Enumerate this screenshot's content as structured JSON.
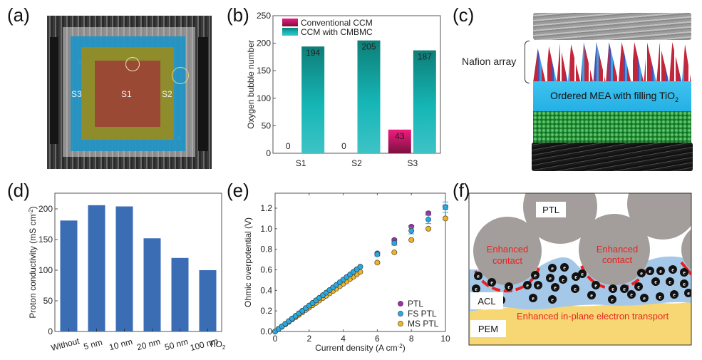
{
  "panels": {
    "a": {
      "label": "(a)",
      "regions": [
        {
          "name": "S1",
          "color": "#b5543a"
        },
        {
          "name": "S2",
          "color": "#a8a03a"
        },
        {
          "name": "S3",
          "color": "#2aa3d4"
        }
      ]
    },
    "b": {
      "label": "(b)"
    },
    "c": {
      "label": "(c)",
      "bracket_label": "Nafion array",
      "layer_label_main": "Ordered MEA with filling TiO",
      "layer_label_sub": "2"
    },
    "d": {
      "label": "(d)"
    },
    "e": {
      "label": "(e)"
    },
    "f": {
      "label": "(f)",
      "ptl_label": "PTL",
      "acl_label": "ACL",
      "pem_label": "PEM",
      "contact_label_1a": "Enhanced",
      "contact_label_1b": "contact",
      "contact_label_2a": "Enhanced",
      "contact_label_2b": "contact",
      "transport_label": "Enhanced in-plane electron transport",
      "electron_symbol": "e",
      "colors": {
        "ptl": "#a39e9b",
        "acl": "#a6c8e8",
        "pem": "#f7d774",
        "highlight": "#e8231f"
      }
    }
  },
  "chart_data": [
    {
      "id": "b",
      "type": "bar",
      "title": "",
      "xlabel": "",
      "ylabel": "Oxygen bubble number",
      "ylim": [
        0,
        250
      ],
      "yticks": [
        0,
        50,
        100,
        150,
        200,
        250
      ],
      "categories": [
        "S1",
        "S2",
        "S3"
      ],
      "series": [
        {
          "name": "Conventional CCM",
          "values": [
            0,
            0,
            43
          ],
          "color": "#e0106e"
        },
        {
          "name": "CCM with CMBMC",
          "values": [
            194,
            205,
            187
          ],
          "color": "#18b3b3"
        }
      ],
      "data_labels": true,
      "legend": "top-left"
    },
    {
      "id": "d",
      "type": "bar",
      "title": "",
      "xlabel": "",
      "ylabel": "Proton conductivity (mS cm",
      "ylabel_sup": "-2",
      "ylabel_close": ")",
      "ylim": [
        0,
        225
      ],
      "yticks": [
        0,
        50,
        100,
        150,
        200
      ],
      "categories": [
        "Without",
        "5 nm",
        "10 nm",
        "20 nm",
        "50 nm",
        "100 nm"
      ],
      "extra_category_label": "TiO",
      "extra_category_sub": "2",
      "values": [
        181,
        206,
        204,
        152,
        120,
        100
      ],
      "color": "#3b6db5"
    },
    {
      "id": "e",
      "type": "scatter",
      "title": "",
      "xlabel": "Current density (A cm",
      "xlabel_sup": "-2",
      "xlabel_close": ")",
      "ylabel": "Ohmic overpotential (V)",
      "xlim": [
        0,
        10
      ],
      "ylim": [
        0,
        1.35
      ],
      "xticks": [
        0,
        2,
        4,
        6,
        8,
        10
      ],
      "yticks": [
        0.0,
        0.2,
        0.4,
        0.6,
        0.8,
        1.0,
        1.2
      ],
      "ytick_labels": [
        "0.0",
        "0.2",
        "0.4",
        "0.6",
        "0.8",
        "1.0",
        "1.2"
      ],
      "legend": "bottom-right",
      "linear_region": {
        "x_start": 0,
        "x_end": 5,
        "step": 0.2
      },
      "series": [
        {
          "name": "PTL",
          "color": "#9b2fae",
          "slope": 0.126,
          "sparse_x": [
            6,
            7,
            8,
            9,
            10
          ],
          "sparse_y": [
            0.76,
            0.89,
            1.02,
            1.15,
            1.21
          ],
          "sparse_err": [
            0.01,
            0.01,
            0.01,
            0.015,
            0.02
          ]
        },
        {
          "name": "FS PTL",
          "color": "#29a9e1",
          "slope": 0.126,
          "sparse_x": [
            6,
            7,
            8,
            9,
            10
          ],
          "sparse_y": [
            0.75,
            0.86,
            0.98,
            1.09,
            1.21
          ],
          "sparse_err": [
            0.015,
            0.02,
            0.03,
            0.04,
            0.05
          ]
        },
        {
          "name": "MS PTL",
          "color": "#f0b323",
          "slope": 0.116,
          "sparse_x": [
            6,
            7,
            8,
            9,
            10
          ],
          "sparse_y": [
            0.67,
            0.77,
            0.89,
            1.0,
            1.1
          ],
          "sparse_err": [
            0.005,
            0.005,
            0.008,
            0.01,
            0.01
          ]
        }
      ]
    }
  ]
}
